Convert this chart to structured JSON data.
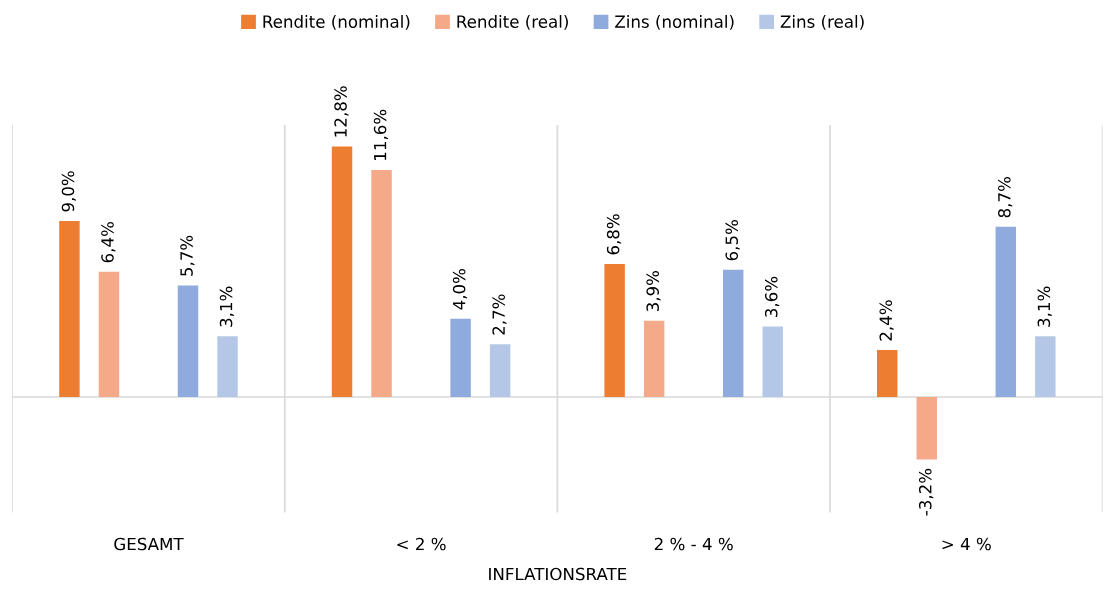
{
  "chart_data": {
    "type": "bar",
    "xlabel": "INFLATIONSRATE",
    "categories": [
      "GESAMT",
      "< 2 %",
      "2 % - 4 %",
      "> 4 %"
    ],
    "series": [
      {
        "name": "Rendite (nominal)",
        "color": "#ed7d31",
        "values": [
          9.0,
          12.8,
          6.8,
          2.4
        ],
        "value_labels": [
          "9,0%",
          "12,8%",
          "6,8%",
          "2,4%"
        ]
      },
      {
        "name": "Rendite (real)",
        "color": "#f4aa88",
        "values": [
          6.4,
          11.6,
          3.9,
          -3.2
        ],
        "value_labels": [
          "6,4%",
          "11,6%",
          "3,9%",
          "-3,2%"
        ]
      },
      {
        "name": "Zins (nominal)",
        "color": "#8faadc",
        "values": [
          5.7,
          4.0,
          6.5,
          8.7
        ],
        "value_labels": [
          "5,7%",
          "4,0%",
          "6,5%",
          "8,7%"
        ]
      },
      {
        "name": "Zins (real)",
        "color": "#b4c7e7",
        "values": [
          3.1,
          2.7,
          3.6,
          3.1
        ],
        "value_labels": [
          "3,1%",
          "2,7%",
          "3,6%",
          "3,1%"
        ]
      }
    ],
    "ylim": [
      -5.9,
      13.9
    ],
    "tick_labels": "x",
    "grid": "x",
    "legend": "top"
  }
}
